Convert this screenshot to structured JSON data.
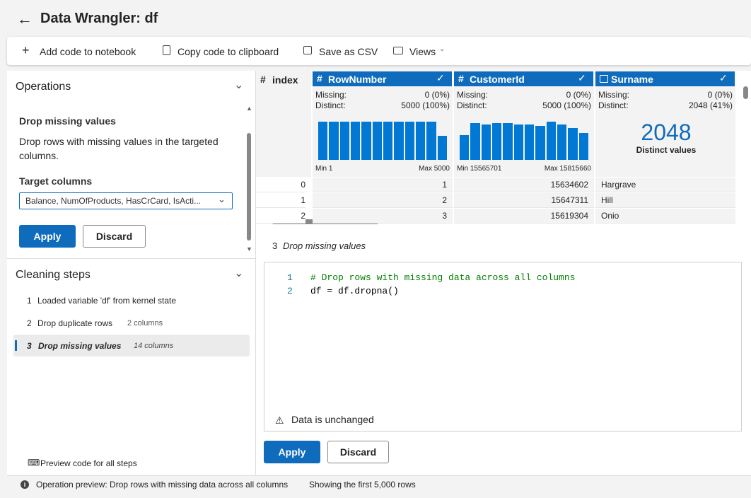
{
  "header": {
    "title": "Data Wrangler: df"
  },
  "toolbar": {
    "items": [
      "Add code to notebook",
      "Copy code to clipboard",
      "Save as CSV",
      "Views"
    ]
  },
  "operations": {
    "heading": "Operations",
    "operation_title": "Drop missing values",
    "description": "Drop rows with missing values in the targeted columns.",
    "target_label": "Target columns",
    "target_value": "Balance, NumOfProducts, HasCrCard, IsActi...",
    "apply": "Apply",
    "discard": "Discard"
  },
  "cleaning_steps": {
    "heading": "Cleaning steps",
    "steps": [
      {
        "number": "1",
        "label": "Loaded variable 'df' from kernel state"
      },
      {
        "number": "2",
        "label": "Drop duplicate rows",
        "detail": "2 columns"
      },
      {
        "number": "3",
        "label": "Drop missing values",
        "detail": "14 columns"
      }
    ],
    "preview_link": "Preview code for all steps"
  },
  "grid": {
    "index_column": {
      "type_icon": "#",
      "name": "index"
    },
    "columns": [
      {
        "type_icon": "#",
        "name": "RowNumber",
        "missing_label": "Missing:",
        "missing": "0 (0%)",
        "distinct_label": "Distinct:",
        "distinct": "5000 (100%)",
        "histogram": [
          430,
          430,
          430,
          430,
          430,
          430,
          430,
          430,
          430,
          430,
          430,
          270
        ],
        "min": "Min 1",
        "max": "Max 5000"
      },
      {
        "type_icon": "#",
        "name": "CustomerId",
        "missing_label": "Missing:",
        "missing": "0 (0%)",
        "distinct_label": "Distinct:",
        "distinct": "5000 (100%)",
        "histogram": [
          320,
          480,
          460,
          480,
          480,
          460,
          460,
          440,
          500,
          460,
          420,
          350
        ],
        "min": "Min 15565701",
        "max": "Max 15815660"
      },
      {
        "name": "Surname",
        "missing_label": "Missing:",
        "missing": "0 (0%)",
        "distinct_label": "Distinct:",
        "distinct": "2048 (41%)",
        "big_number": "2048",
        "big_caption": "Distinct values"
      }
    ],
    "rows": [
      [
        0,
        1,
        15634602,
        "Hargrave"
      ],
      [
        1,
        2,
        15647311,
        "Hill"
      ],
      [
        2,
        3,
        15619304,
        "Onio"
      ]
    ]
  },
  "preview": {
    "step_number": "3",
    "step_label": "Drop missing values",
    "code_lines": [
      {
        "number": "1",
        "text": "# Drop rows with missing data across all columns"
      },
      {
        "number": "2",
        "text": "df = df.dropna()"
      }
    ],
    "notice": "Data is unchanged",
    "apply": "Apply",
    "discard": "Discard"
  },
  "status": {
    "message": "Operation preview: Drop rows with missing data across all columns",
    "rows_info": "Showing the first 5,000 rows"
  }
}
